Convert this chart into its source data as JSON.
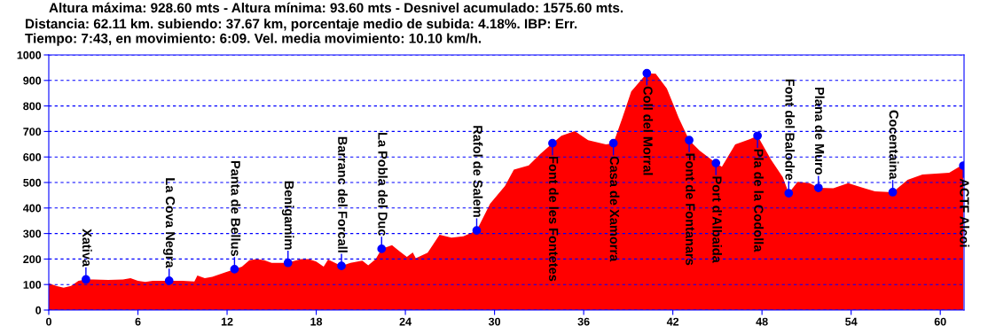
{
  "chart_data": {
    "type": "area",
    "title": "Altura máxima: 928.60 mts - Altura mínima: 93.60 mts - Desnivel acumulado: 1575.60 mts.",
    "subtitle": "Distancia: 62.11 km. subiendo: 37.67 km, porcentaje medio de subida: 4.18%. IBP: Err.\nTiempo: 7:43, en movimiento: 6:09. Vel. media movimiento: 10.10 km/h.",
    "xlim": [
      0,
      61.6
    ],
    "xticks": [
      0,
      6,
      12,
      18,
      24,
      30,
      36,
      42,
      48,
      54,
      60
    ],
    "ylim": [
      0,
      1000
    ],
    "yticks": [
      0,
      100,
      200,
      300,
      400,
      500,
      600,
      700,
      800,
      900,
      1000
    ],
    "grid": "y",
    "legend": false,
    "series": [
      {
        "color": "#ff0000",
        "x": [
          0,
          0.5,
          1,
          1.5,
          2,
          2.5,
          3,
          4,
          5,
          5.5,
          6,
          6.5,
          7,
          8,
          9,
          9.8,
          10,
          10.5,
          11,
          12,
          12.5,
          13,
          13.5,
          14,
          14.5,
          15,
          16,
          17,
          17.5,
          18,
          18.5,
          18.8,
          19.7,
          20.3,
          21.1,
          21.5,
          22,
          22.4,
          23.1,
          23.5,
          24.1,
          24.5,
          24.7,
          25.5,
          26.3,
          27.1,
          27.9,
          28.8,
          29.7,
          30.7,
          31.3,
          32.3,
          33.1,
          33.9,
          34.5,
          35.4,
          36.3,
          37.5,
          38.0,
          38.6,
          39.2,
          40.25,
          40.85,
          41.6,
          42.4,
          43.1,
          43.8,
          44.9,
          45.3,
          46.2,
          47.2,
          47.7,
          48.6,
          49.4,
          49.8,
          50.4,
          51.2,
          51.8,
          52.8,
          53.8,
          54.8,
          55.6,
          56.8,
          57.8,
          58.8,
          60.6,
          61.4,
          61.55
        ],
        "values": [
          105,
          95,
          88,
          95,
          115,
          120,
          120,
          118,
          120,
          125,
          115,
          110,
          115,
          115,
          115,
          112,
          135,
          125,
          130,
          150,
          160,
          170,
          195,
          200,
          195,
          185,
          185,
          200,
          200,
          190,
          170,
          198,
          173,
          185,
          194,
          175,
          200,
          240,
          254,
          235,
          208,
          226,
          203,
          225,
          295,
          284,
          289,
          312,
          417,
          486,
          550,
          567,
          613,
          654,
          683,
          701,
          666,
          649,
          654,
          753,
          857,
          928,
          926,
          868,
          753,
          666,
          625,
          576,
          562,
          649,
          670,
          683,
          590,
          521,
          458,
          503,
          497,
          479,
          477,
          497,
          479,
          465,
          462,
          510,
          531,
          538,
          566,
          566
        ]
      },
      {
        "type": "scatter",
        "color": "#0000ff",
        "marker": "circle",
        "x": [
          2.5,
          8.1,
          12.5,
          16.1,
          19.7,
          22.4,
          28.8,
          33.9,
          38.0,
          40.25,
          43.1,
          44.9,
          47.7,
          49.8,
          51.8,
          56.8,
          61.55
        ],
        "values": [
          120,
          115,
          160,
          185,
          173,
          240,
          312,
          654,
          654,
          928,
          666,
          576,
          683,
          458,
          479,
          462,
          566
        ]
      }
    ],
    "annotations": [
      {
        "text": "Xativa",
        "x": 2.5,
        "y": 120
      },
      {
        "text": "La Cova Negra",
        "x": 8.1,
        "y": 115
      },
      {
        "text": "Panta de Bellus",
        "x": 12.5,
        "y": 160
      },
      {
        "text": "Benigamim",
        "x": 16.1,
        "y": 185
      },
      {
        "text": "Barranc del Forcall",
        "x": 19.7,
        "y": 173
      },
      {
        "text": "La Pobla del Duc",
        "x": 22.4,
        "y": 240
      },
      {
        "text": "Rafol de Salem",
        "x": 28.8,
        "y": 312
      },
      {
        "text": "Font de les Fontetes",
        "x": 33.9,
        "y": 654
      },
      {
        "text": "Casa de Xamorra",
        "x": 38.0,
        "y": 654
      },
      {
        "text": "Coll del Morral",
        "x": 40.25,
        "y": 928
      },
      {
        "text": "Font de Fontanars",
        "x": 43.1,
        "y": 666
      },
      {
        "text": "Port d'Albaida",
        "x": 44.9,
        "y": 576
      },
      {
        "text": "Pla de la Codolla",
        "x": 47.7,
        "y": 683
      },
      {
        "text": "Font del Balodre",
        "x": 49.8,
        "y": 458
      },
      {
        "text": "Plana de Muro",
        "x": 51.8,
        "y": 479
      },
      {
        "text": "Cocentaina",
        "x": 56.8,
        "y": 462
      },
      {
        "text": "ACTF Alcoi",
        "x": 61.55,
        "y": 566
      }
    ]
  }
}
